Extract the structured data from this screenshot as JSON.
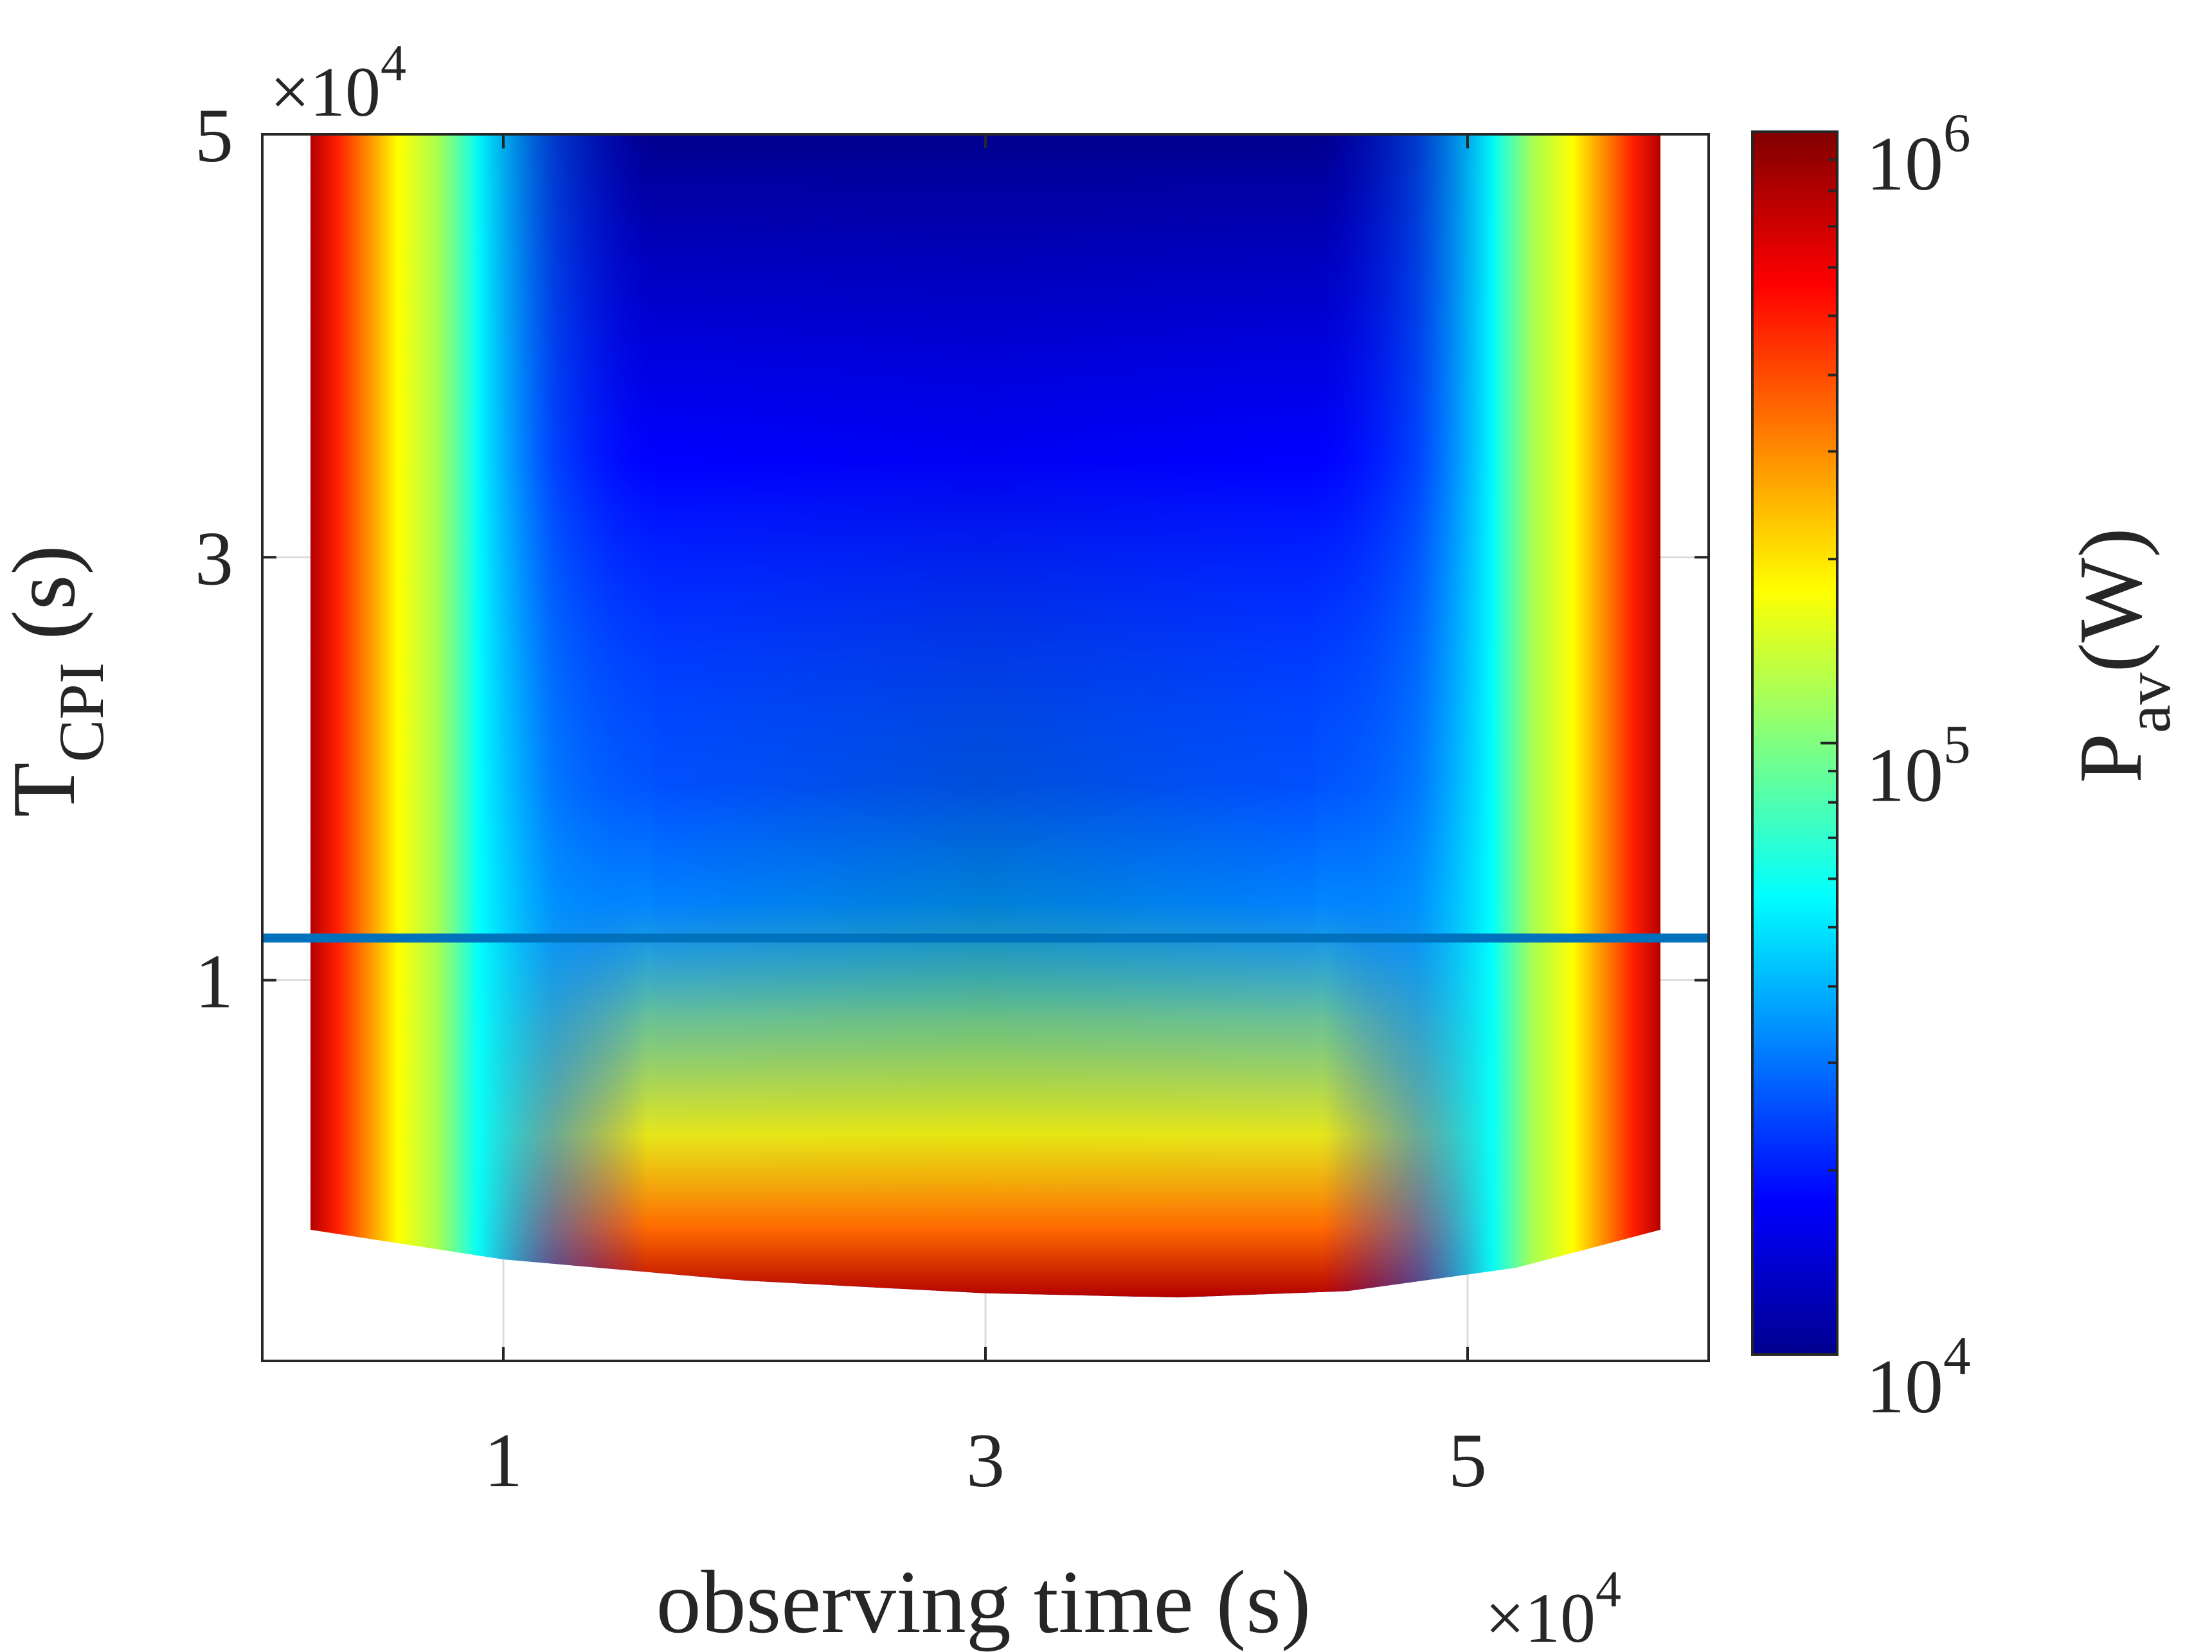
{
  "chart_data": {
    "type": "heatmap",
    "xlabel": "observing time (s)",
    "ylabel_main": "T",
    "ylabel_sub": "CPI",
    "ylabel_unit": " (s)",
    "x_exponent_label": "×10",
    "x_exponent_power": "4",
    "y_exponent_label": "×10",
    "y_exponent_power": "4",
    "xlim": [
      0,
      60000
    ],
    "ylim": [
      -8000,
      50000
    ],
    "x_ticks": [
      10000,
      30000,
      50000
    ],
    "x_tick_labels": [
      "1",
      "3",
      "5"
    ],
    "y_ticks": [
      10000,
      30000,
      50000
    ],
    "y_tick_labels": [
      "1",
      "3",
      "5"
    ],
    "grid": true,
    "field": {
      "x_range": [
        2000,
        58000
      ],
      "y_top": 50000,
      "y_bottom_edge": [
        [
          2000,
          -1800
        ],
        [
          10000,
          -3200
        ],
        [
          20000,
          -4200
        ],
        [
          30000,
          -4800
        ],
        [
          38000,
          -5000
        ],
        [
          45000,
          -4700
        ],
        [
          52000,
          -3600
        ],
        [
          58000,
          -1800
        ]
      ],
      "min_value_location": [
        35000,
        50000
      ],
      "value_range_W": [
        10000,
        1000000
      ]
    },
    "reference_line": {
      "y": 12000,
      "color": "#0072BD"
    },
    "colorbar": {
      "label_main": "P",
      "label_sub": "av",
      "label_unit": "(W)",
      "scale": "log",
      "range": [
        10000,
        1000000
      ],
      "tick_values": [
        10000,
        100000,
        1000000
      ],
      "tick_base": "10",
      "tick_powers": [
        "4",
        "5",
        "6"
      ],
      "colormap": "jet"
    }
  }
}
